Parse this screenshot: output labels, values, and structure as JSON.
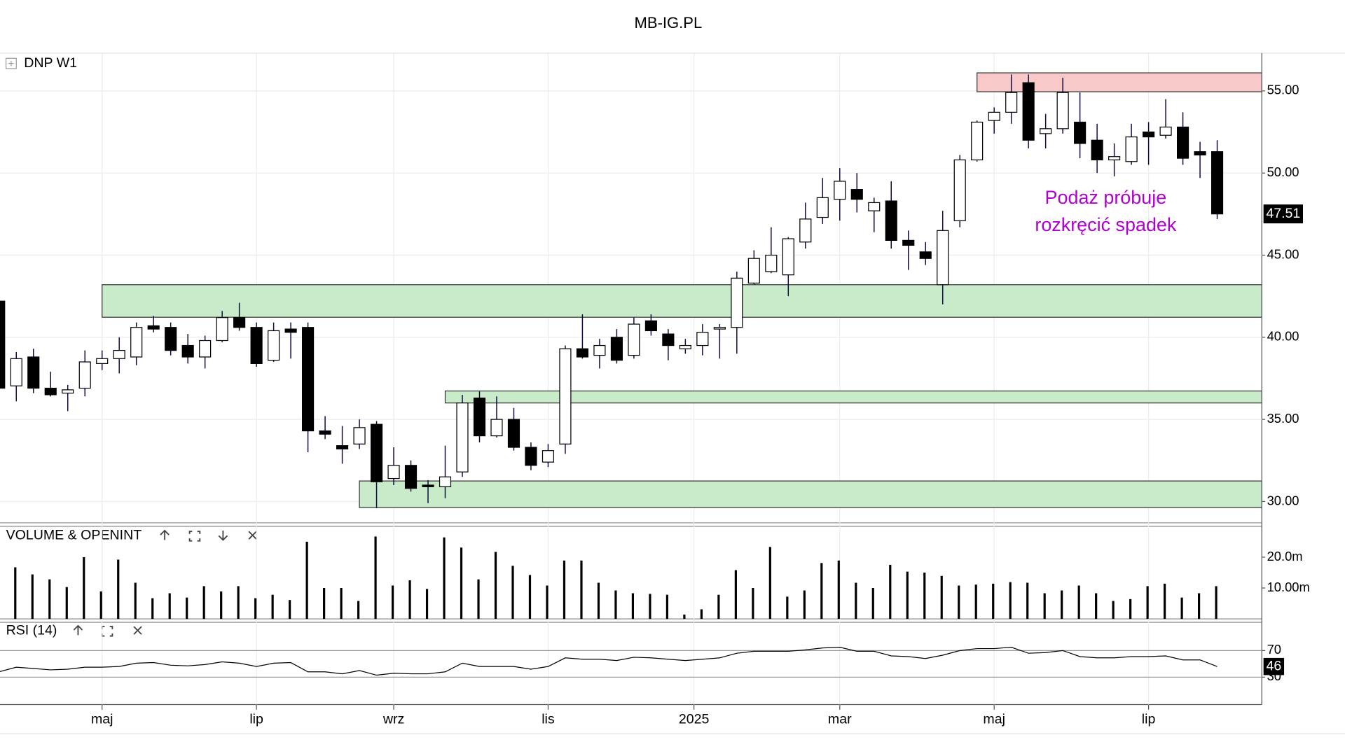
{
  "header": "MB-IG.PL",
  "chart_data": [
    {
      "type": "candlestick",
      "title": "DNP W1",
      "open": [
        42.2,
        37.04,
        38.8,
        36.9,
        36.6,
        36.9,
        38.4,
        38.7,
        38.8,
        40.7,
        40.6,
        39.5,
        38.8,
        39.8,
        41.2,
        40.6,
        38.6,
        40.5,
        40.6,
        34.3,
        33.4,
        33.5,
        34.7,
        31.4,
        32.2,
        31.0,
        30.9,
        31.8,
        36.3,
        34.0,
        35.0,
        33.3,
        32.4,
        33.5,
        39.3,
        38.9,
        40.0,
        38.9,
        41.0,
        40.2,
        39.3,
        39.5,
        40.5,
        40.6,
        43.3,
        44.0,
        43.8,
        45.8,
        47.3,
        48.4,
        49.0,
        47.7,
        48.3,
        45.9,
        45.2,
        43.2,
        47.1,
        50.8,
        53.2,
        53.7,
        55.5,
        52.4,
        52.7,
        53.1,
        52.0,
        50.8,
        50.7,
        52.5,
        52.3,
        52.8,
        51.3,
        51.3
      ],
      "high": [
        42.3,
        39.1,
        39.3,
        37.9,
        37.1,
        39.2,
        39.2,
        40.0,
        40.9,
        41.3,
        40.9,
        40.2,
        40.1,
        41.6,
        42.1,
        40.9,
        40.9,
        40.9,
        40.9,
        35.2,
        34.6,
        35.0,
        34.9,
        33.3,
        32.5,
        31.3,
        33.4,
        36.5,
        36.7,
        36.4,
        35.7,
        33.6,
        33.5,
        39.5,
        41.4,
        39.9,
        40.5,
        41.2,
        41.4,
        40.5,
        39.9,
        40.8,
        40.8,
        44.0,
        45.3,
        46.7,
        46.1,
        48.2,
        49.7,
        50.3,
        50.0,
        48.5,
        49.5,
        46.5,
        45.8,
        47.7,
        51.1,
        53.2,
        54.0,
        56.0,
        56.0,
        53.6,
        55.8,
        54.9,
        53.0,
        51.8,
        53.0,
        53.1,
        54.5,
        53.7,
        51.9,
        52.0
      ],
      "low": [
        36.5,
        36.1,
        36.6,
        36.4,
        35.5,
        36.4,
        38.0,
        37.8,
        38.3,
        40.3,
        38.9,
        38.4,
        38.1,
        39.7,
        40.4,
        38.2,
        38.5,
        38.7,
        33.0,
        33.8,
        32.3,
        33.2,
        29.6,
        31.0,
        30.6,
        29.9,
        30.2,
        31.5,
        33.6,
        33.9,
        33.1,
        31.9,
        32.1,
        32.9,
        38.7,
        38.1,
        38.4,
        38.7,
        40.1,
        38.6,
        39.0,
        38.9,
        38.7,
        39.0,
        43.2,
        43.9,
        42.5,
        45.4,
        46.9,
        47.1,
        47.6,
        46.4,
        45.4,
        44.1,
        44.4,
        42.0,
        46.7,
        50.7,
        52.4,
        53.0,
        51.5,
        51.5,
        52.4,
        50.9,
        50.0,
        49.8,
        50.5,
        50.5,
        52.1,
        50.5,
        49.7,
        47.2
      ],
      "close": [
        36.9,
        38.7,
        36.9,
        36.5,
        36.8,
        38.5,
        38.7,
        39.2,
        40.6,
        40.5,
        39.2,
        38.8,
        39.8,
        41.2,
        40.6,
        38.4,
        40.4,
        40.3,
        34.3,
        34.1,
        33.2,
        34.5,
        31.2,
        32.2,
        30.8,
        30.9,
        31.5,
        36.0,
        34.0,
        35.0,
        33.3,
        32.2,
        33.1,
        39.3,
        38.8,
        39.5,
        38.6,
        40.8,
        40.4,
        39.5,
        39.5,
        40.3,
        40.6,
        43.6,
        44.8,
        45.0,
        46.0,
        47.2,
        48.5,
        49.5,
        48.4,
        48.2,
        45.9,
        45.6,
        44.8,
        46.5,
        50.8,
        53.1,
        53.7,
        54.9,
        52.0,
        52.7,
        54.9,
        51.8,
        50.8,
        51.0,
        52.2,
        52.2,
        52.8,
        50.9,
        51.1,
        47.51
      ],
      "up_color": "#ffffff",
      "down_color": "#000000",
      "last_price": 47.51,
      "ylim": [
        28.7,
        57.3
      ],
      "yticks": [
        {
          "value": 30,
          "label": "30.00"
        },
        {
          "value": 35,
          "label": "35.00"
        },
        {
          "value": 40,
          "label": "40.00"
        },
        {
          "value": 45,
          "label": "45.00"
        },
        {
          "value": 50,
          "label": "50.00"
        },
        {
          "value": 55,
          "label": "55.00"
        }
      ],
      "xlim": [
        0.05,
        73.6
      ],
      "xticks": [
        {
          "value": 6,
          "label": "maj"
        },
        {
          "value": 15,
          "label": "lip"
        },
        {
          "value": 23,
          "label": "wrz"
        },
        {
          "value": 32,
          "label": "lis"
        },
        {
          "value": 40.5,
          "label": "2025"
        },
        {
          "value": 49,
          "label": "mar"
        },
        {
          "value": 58,
          "label": "maj"
        },
        {
          "value": 67,
          "label": "lip"
        }
      ],
      "grid": true,
      "zones": [
        {
          "from": 6,
          "top": 43.2,
          "bottom": 41.22,
          "color": "#c9ebc9"
        },
        {
          "from": 26,
          "top": 36.73,
          "bottom": 36.0,
          "color": "#c9ebc9"
        },
        {
          "from": 21,
          "top": 31.25,
          "bottom": 29.63,
          "color": "#c9ebc9"
        },
        {
          "from": 57,
          "top": 56.1,
          "bottom": 54.95,
          "color": "#f9c9c9"
        }
      ],
      "annotation": {
        "lines": [
          "Podaż próbuje",
          "rozkręcić spadek"
        ],
        "x": 64.5,
        "y": 47.6,
        "color": "#b000d0"
      }
    },
    {
      "type": "bar",
      "title": "VOLUME & OPENINT",
      "color": "#000000",
      "values": [
        null,
        16.7,
        14.4,
        12.8,
        10.3,
        20.0,
        8.9,
        19.2,
        11.7,
        6.7,
        8.3,
        6.9,
        10.6,
        8.9,
        10.6,
        6.7,
        7.8,
        6.1,
        25.0,
        10.0,
        10.0,
        5.8,
        26.7,
        10.8,
        12.5,
        9.7,
        26.4,
        23.1,
        12.8,
        21.7,
        17.2,
        14.2,
        10.8,
        18.9,
        18.9,
        11.7,
        9.2,
        8.3,
        8.1,
        7.8,
        1.4,
        3.1,
        7.8,
        15.8,
        10.0,
        23.3,
        7.2,
        9.2,
        18.1,
        18.9,
        11.7,
        10.0,
        17.5,
        15.3,
        15.0,
        13.9,
        10.8,
        11.1,
        11.4,
        11.9,
        11.7,
        8.3,
        9.2,
        10.8,
        8.3,
        5.8,
        6.4,
        10.6,
        11.4,
        6.9,
        8.3,
        10.6
      ],
      "ylim": [
        0,
        30
      ],
      "yticks": [
        {
          "value": 10,
          "label": "10.00m"
        },
        {
          "value": 20,
          "label": "20.0m"
        }
      ]
    },
    {
      "type": "line",
      "title": "RSI (14)",
      "color": "#000000",
      "values": [
        38,
        45,
        43,
        41,
        42,
        45,
        45,
        46,
        51,
        52,
        48,
        47,
        49,
        53,
        51,
        46,
        51,
        52,
        38,
        38,
        35,
        40,
        33,
        36,
        35,
        35,
        38,
        51,
        46,
        46,
        46,
        42,
        46,
        59,
        57,
        57,
        55,
        60,
        59,
        57,
        55,
        57,
        59,
        66,
        69,
        69,
        69,
        71,
        74,
        75,
        69,
        69,
        62,
        61,
        58,
        63,
        70,
        73,
        73,
        75,
        66,
        67,
        70,
        61,
        59,
        59,
        61,
        61,
        62,
        56,
        56,
        46
      ],
      "last_value": 46,
      "ylim": [
        -11.3,
        112.6
      ],
      "yticks": [
        30,
        70
      ]
    }
  ]
}
